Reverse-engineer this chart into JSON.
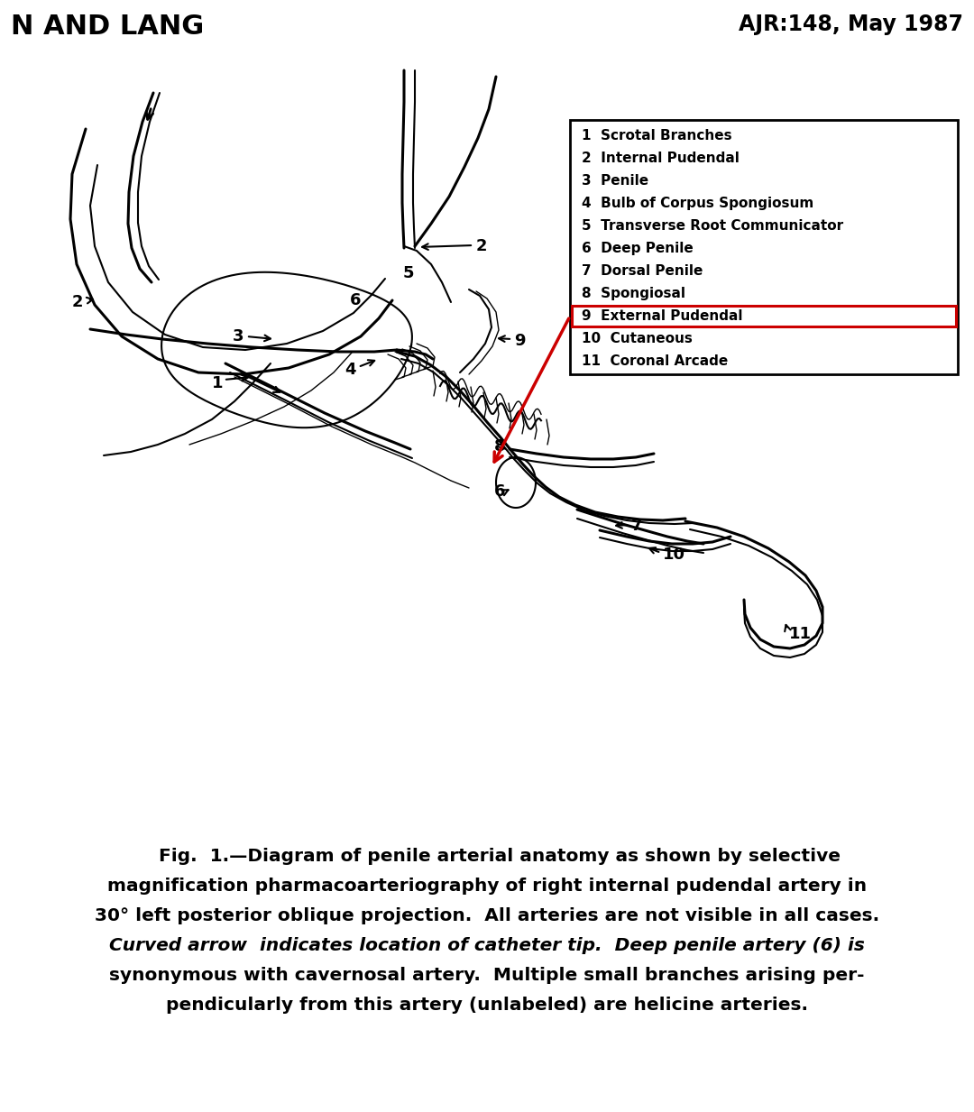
{
  "header_left": "N AND LANG",
  "header_right": "AJR:148, May 1987",
  "legend_items": [
    "1  Scrotal Branches",
    "2  Internal Pudendal",
    "3  Penile",
    "4  Bulb of Corpus Spongiosum",
    "5  Transverse Root Communicator",
    "6  Deep Penile",
    "7  Dorsal Penile",
    "8  Spongiosal",
    "9  External Pudendal",
    "10  Cutaneous",
    "11  Coronal Arcade"
  ],
  "highlighted_item_idx": 8,
  "highlight_color": "#cc0000",
  "caption_lines": [
    "    Fig.  1.—Diagram of penile arterial anatomy as shown by selective",
    "magnification pharmacoarteriography of right internal pudendal artery in",
    "30° left posterior oblique projection.  All arteries are not visible in all cases.",
    "Curved arrow  indicates location of catheter tip.  Deep penile artery (6) is",
    "synonymous with cavernosal artery.  Multiple small branches arising per-",
    "pendicularly from this artery (unlabeled) are helicine arteries."
  ],
  "bg_color": "#ffffff",
  "text_color": "#000000"
}
